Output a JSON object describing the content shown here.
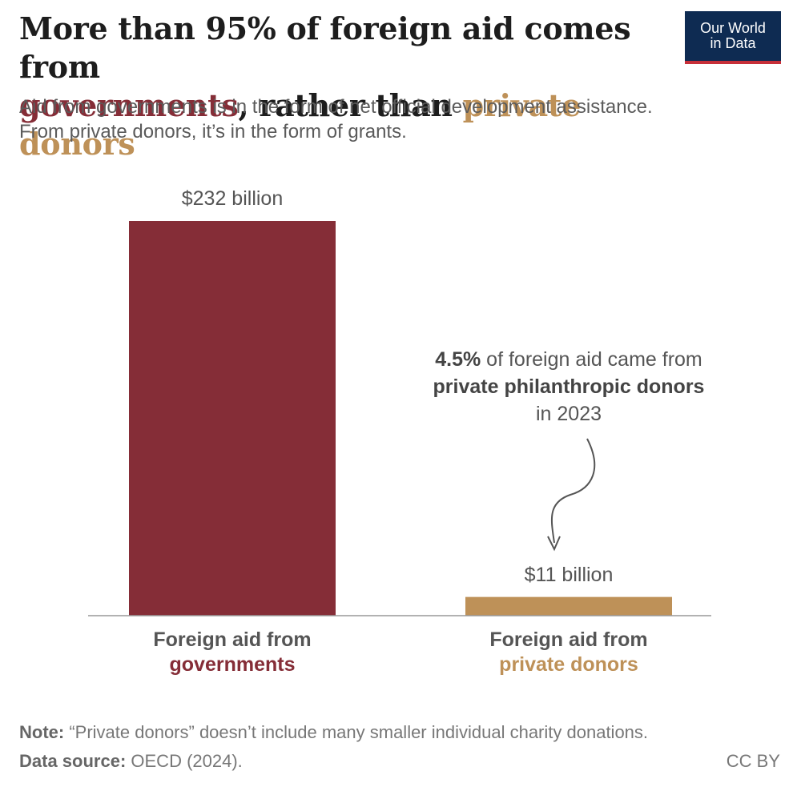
{
  "title": {
    "line1": "More than 95% of foreign aid comes from",
    "highlight_gov": "governments",
    "middle": ", rather than ",
    "highlight_priv": "private donors"
  },
  "subtitle": {
    "line1": "Aid from governments is in the form of net official development assistance.",
    "line2": "From private donors, it’s in the form of grants."
  },
  "logo": {
    "line1": "Our World",
    "line2": "in Data"
  },
  "annotation": {
    "pct": "4.5%",
    "text1": " of foreign aid came from",
    "bold2": "private philanthropic donors",
    "text3": "in 2023"
  },
  "footer": {
    "note_label": "Note:",
    "note_text": " “Private donors” doesn’t include many smaller individual charity donations.",
    "source_label": "Data source:",
    "source_text": " OECD (2024).",
    "license": "CC BY"
  },
  "colors": {
    "governments": "#852d37",
    "private": "#be9158"
  },
  "chart_data": {
    "type": "bar",
    "categories": [
      "Foreign aid from governments",
      "Foreign aid from private donors"
    ],
    "category_lines": [
      [
        "Foreign aid from",
        "governments"
      ],
      [
        "Foreign aid from",
        "private donors"
      ]
    ],
    "values": [
      232,
      11
    ],
    "value_labels": [
      "$232 billion",
      "$11 billion"
    ],
    "unit": "billion US$",
    "ylim": [
      0,
      232
    ],
    "grid": false,
    "legend": "none"
  }
}
